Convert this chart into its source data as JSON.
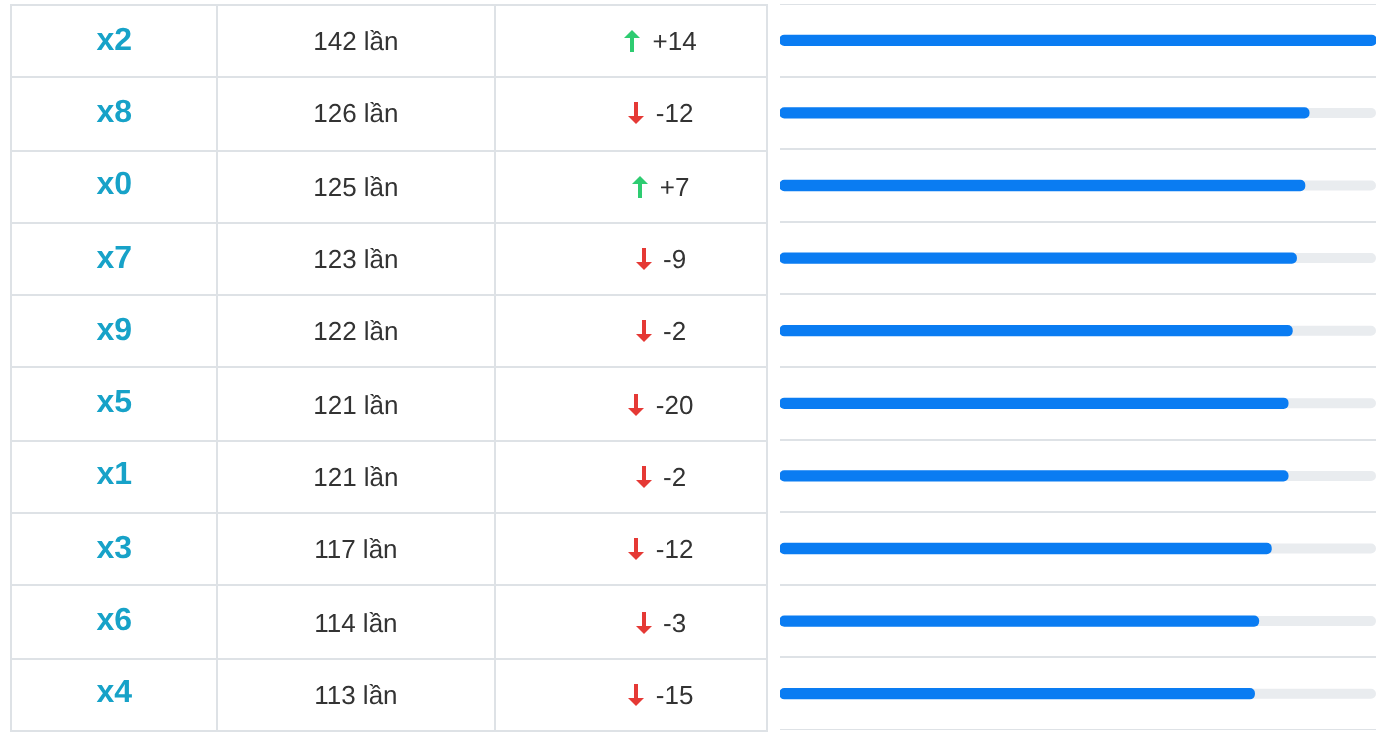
{
  "chart_data": {
    "type": "bar",
    "orientation": "horizontal",
    "categories": [
      "x2",
      "x8",
      "x0",
      "x7",
      "x9",
      "x5",
      "x1",
      "x3",
      "x6",
      "x4"
    ],
    "values": [
      142,
      126,
      125,
      123,
      122,
      121,
      121,
      117,
      114,
      113
    ],
    "value_labels": [
      "142 lần",
      "126 lần",
      "125 lần",
      "123 lần",
      "122 lần",
      "121 lần",
      "121 lần",
      "117 lần",
      "114 lần",
      "113 lần"
    ],
    "color": "#0a7cf2",
    "xlim": [
      0,
      142
    ],
    "tick_labels": false,
    "grid": "y",
    "legend": false,
    "annotations": [
      "+14",
      "-12",
      "+7",
      "-9",
      "-2",
      "-20",
      "-2",
      "-12",
      "-3",
      "-15"
    ]
  }
}
